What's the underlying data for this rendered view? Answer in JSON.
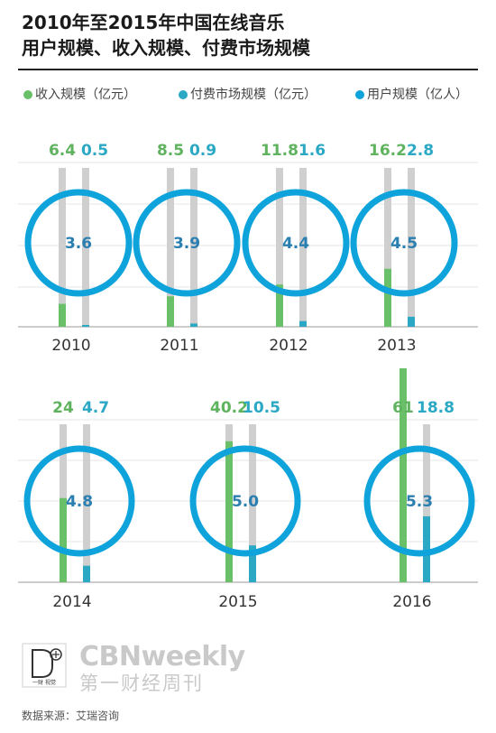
{
  "title_line1": "2010年至2015年中国在线音乐",
  "title_line2": "用户规模、收入规模、付费市场规模",
  "legend": [
    {
      "label": "收入规模（亿元）",
      "color": "#6abf69"
    },
    {
      "label": "付费市场规模（亿元）",
      "color": "#2aa8c4"
    },
    {
      "label": "用户规模（亿人）",
      "color": "#0fa3dc"
    }
  ],
  "brand": {
    "en": "CBNweekly",
    "cn": "第一财经周刊",
    "logo_text": "一财 视觉"
  },
  "source": "数据来源：艾瑞咨询",
  "colors": {
    "revenue_label": "#5fb35f",
    "revenue_bar": "#6abf69",
    "paid_label": "#2aa8c4",
    "paid_bar": "#2aa8c4",
    "users_ring": "#0fa3dc",
    "users_label": "#2a7fb0",
    "track": "#cfcfcf"
  },
  "chart_data": {
    "type": "bar",
    "categories": [
      "2010",
      "2011",
      "2012",
      "2013",
      "2014",
      "2015",
      "2016"
    ],
    "series": [
      {
        "name": "收入规模（亿元）",
        "values": [
          6.4,
          8.5,
          11.8,
          16.2,
          24,
          40.2,
          61
        ]
      },
      {
        "name": "付费市场规模（亿元）",
        "values": [
          0.5,
          0.9,
          1.6,
          2.8,
          4.7,
          10.5,
          18.8
        ]
      },
      {
        "name": "用户规模（亿人）",
        "values": [
          3.6,
          3.9,
          4.4,
          4.5,
          4.8,
          5.0,
          5.3
        ]
      }
    ],
    "value_labels": {
      "revenue": [
        "6.4",
        "8.5",
        "11.8",
        "16.2",
        "24",
        "40.2",
        "61"
      ],
      "paid": [
        "0.5",
        "0.9",
        "1.6",
        "2.8",
        "4.7",
        "10.5",
        "18.8"
      ],
      "users": [
        "3.6",
        "3.9",
        "4.4",
        "4.5",
        "4.8",
        "5.0",
        "5.3"
      ]
    },
    "ylim": [
      0,
      61
    ],
    "legend_position": "top"
  }
}
